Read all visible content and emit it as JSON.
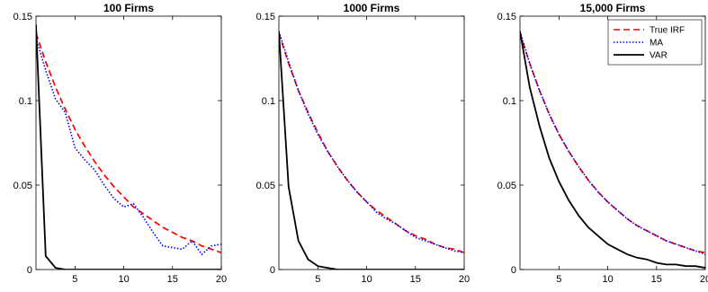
{
  "chart_data": [
    {
      "type": "line",
      "title": "100 Firms",
      "xlabel": "",
      "ylabel": "",
      "xlim": [
        1,
        20
      ],
      "ylim": [
        0,
        0.15
      ],
      "xticks": [
        5,
        10,
        15,
        20
      ],
      "yticks": [
        0,
        0.05,
        0.1,
        0.15
      ],
      "x": [
        1,
        2,
        3,
        4,
        5,
        6,
        7,
        8,
        9,
        10,
        11,
        12,
        13,
        14,
        15,
        16,
        17,
        18,
        19,
        20
      ],
      "series": [
        {
          "name": "True IRF",
          "color": "#ff0000",
          "style": "dashed",
          "values": [
            0.14,
            0.123,
            0.108,
            0.095,
            0.083,
            0.073,
            0.064,
            0.056,
            0.049,
            0.043,
            0.037,
            0.033,
            0.029,
            0.025,
            0.022,
            0.019,
            0.017,
            0.014,
            0.012,
            0.01
          ]
        },
        {
          "name": "MA",
          "color": "#0000ff",
          "style": "dotted",
          "values": [
            0.137,
            0.118,
            0.101,
            0.093,
            0.072,
            0.065,
            0.059,
            0.05,
            0.042,
            0.037,
            0.039,
            0.031,
            0.022,
            0.014,
            0.013,
            0.012,
            0.017,
            0.009,
            0.014,
            0.015
          ]
        },
        {
          "name": "VAR",
          "color": "#000000",
          "style": "solid",
          "values": [
            0.145,
            0.008,
            0.001,
            0,
            0,
            0,
            0,
            0,
            0,
            0,
            0,
            0,
            0,
            0,
            0,
            0,
            0,
            0,
            0,
            0
          ]
        }
      ]
    },
    {
      "type": "line",
      "title": "1000 Firms",
      "xlabel": "",
      "ylabel": "",
      "xlim": [
        1,
        20
      ],
      "ylim": [
        0,
        0.15
      ],
      "xticks": [
        5,
        10,
        15,
        20
      ],
      "yticks": [
        0,
        0.05,
        0.1,
        0.15
      ],
      "x": [
        1,
        2,
        3,
        4,
        5,
        6,
        7,
        8,
        9,
        10,
        11,
        12,
        13,
        14,
        15,
        16,
        17,
        18,
        19,
        20
      ],
      "series": [
        {
          "name": "True IRF",
          "color": "#ff0000",
          "style": "dashed",
          "values": [
            0.14,
            0.122,
            0.106,
            0.093,
            0.081,
            0.07,
            0.061,
            0.053,
            0.046,
            0.04,
            0.035,
            0.031,
            0.027,
            0.023,
            0.02,
            0.018,
            0.015,
            0.013,
            0.012,
            0.01
          ]
        },
        {
          "name": "MA",
          "color": "#0000ff",
          "style": "dotted",
          "values": [
            0.141,
            0.123,
            0.106,
            0.092,
            0.08,
            0.07,
            0.061,
            0.053,
            0.046,
            0.04,
            0.034,
            0.03,
            0.027,
            0.023,
            0.019,
            0.017,
            0.015,
            0.013,
            0.011,
            0.01
          ]
        },
        {
          "name": "VAR",
          "color": "#000000",
          "style": "solid",
          "values": [
            0.141,
            0.049,
            0.017,
            0.006,
            0.002,
            0.001,
            0,
            0,
            0,
            0,
            0,
            0,
            0,
            0,
            0,
            0,
            0,
            0,
            0,
            0
          ]
        }
      ]
    },
    {
      "type": "line",
      "title": "15,000 Firms",
      "xlabel": "",
      "ylabel": "",
      "xlim": [
        1,
        20
      ],
      "ylim": [
        0,
        0.15
      ],
      "xticks": [
        5,
        10,
        15,
        20
      ],
      "yticks": [
        0,
        0.05,
        0.1,
        0.15
      ],
      "legend": "top-right",
      "x": [
        1,
        2,
        3,
        4,
        5,
        6,
        7,
        8,
        9,
        10,
        11,
        12,
        13,
        14,
        15,
        16,
        17,
        18,
        19,
        20
      ],
      "series": [
        {
          "name": "True IRF",
          "color": "#ff0000",
          "style": "dashed",
          "values": [
            0.14,
            0.122,
            0.106,
            0.092,
            0.08,
            0.07,
            0.061,
            0.053,
            0.046,
            0.04,
            0.035,
            0.03,
            0.026,
            0.023,
            0.02,
            0.017,
            0.015,
            0.013,
            0.011,
            0.01
          ]
        },
        {
          "name": "MA",
          "color": "#0000ff",
          "style": "dotted",
          "values": [
            0.141,
            0.122,
            0.106,
            0.092,
            0.08,
            0.07,
            0.061,
            0.053,
            0.046,
            0.04,
            0.035,
            0.03,
            0.026,
            0.023,
            0.02,
            0.017,
            0.015,
            0.013,
            0.011,
            0.009
          ]
        },
        {
          "name": "VAR",
          "color": "#000000",
          "style": "solid",
          "values": [
            0.141,
            0.108,
            0.085,
            0.066,
            0.052,
            0.041,
            0.032,
            0.025,
            0.02,
            0.015,
            0.012,
            0.009,
            0.007,
            0.006,
            0.004,
            0.003,
            0.003,
            0.002,
            0.002,
            0.001
          ]
        }
      ]
    }
  ]
}
